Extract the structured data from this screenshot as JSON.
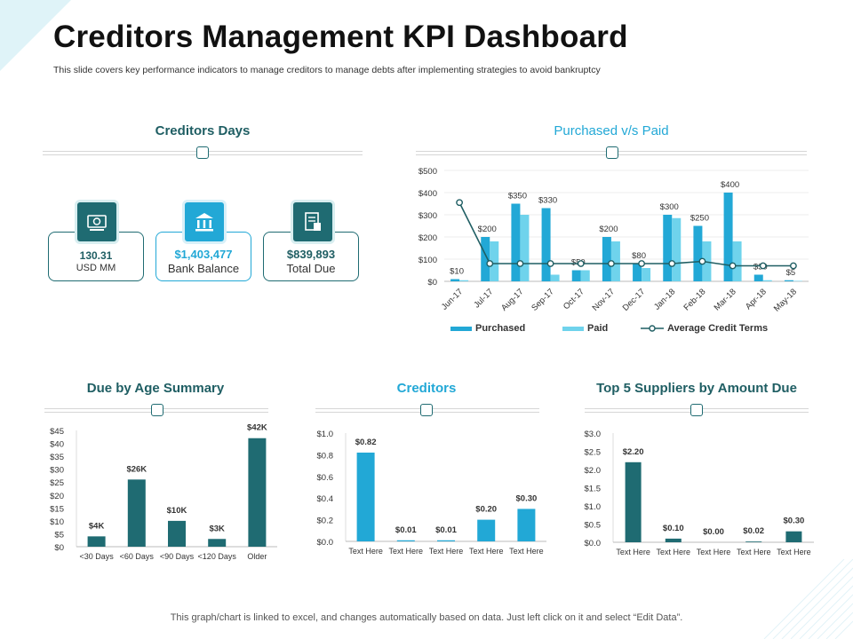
{
  "header": {
    "title": "Creditors Management KPI Dashboard",
    "subtitle": "This slide covers key performance indicators to manage creditors to manage debts after implementing strategies to avoid bankruptcy"
  },
  "footer": "This graph/chart is linked to excel, and changes automatically based on data. Just left click on it and select “Edit Data”.",
  "sections": {
    "creditors_days": "Creditors Days",
    "purchased_vs_paid": "Purchased v/s Paid",
    "due_by_age": "Due by Age Summary",
    "creditors": "Creditors",
    "top_suppliers": "Top 5 Suppliers by Amount Due"
  },
  "kpis": [
    {
      "value": "130.31",
      "label": "USD MM",
      "icon": "money-icon"
    },
    {
      "value": "$1,403,477",
      "label": "Bank Balance",
      "icon": "bank-icon"
    },
    {
      "value": "$839,893",
      "label": "Total Due",
      "icon": "invoice-icon"
    }
  ],
  "colors": {
    "dark": "#1f6b72",
    "blue": "#22a8d6",
    "light_blue": "#6fd3ec",
    "line": "#1f5e63"
  },
  "chart_data": [
    {
      "id": "purchased-vs-paid",
      "type": "bar",
      "title": "Purchased v/s Paid",
      "categories": [
        "Jun-17",
        "Jul-17",
        "Aug-17",
        "Sep-17",
        "Oct-17",
        "Nov-17",
        "Dec-17",
        "Jan-18",
        "Feb-18",
        "Mar-18",
        "Apr-18",
        "May-18"
      ],
      "yticks": [
        "$0",
        "$100",
        "$200",
        "$300",
        "$400",
        "$500"
      ],
      "ylim": [
        0,
        500
      ],
      "series": [
        {
          "name": "Purchased",
          "type": "bar",
          "values": [
            10,
            200,
            350,
            330,
            50,
            200,
            80,
            300,
            250,
            400,
            30,
            5
          ]
        },
        {
          "name": "Paid",
          "type": "bar",
          "values": [
            5,
            180,
            300,
            30,
            50,
            180,
            60,
            285,
            180,
            180,
            5,
            2
          ]
        },
        {
          "name": "Average Credit Terms",
          "type": "line",
          "values": [
            355,
            80,
            80,
            80,
            80,
            80,
            80,
            80,
            90,
            70,
            70,
            70
          ]
        }
      ],
      "data_labels": [
        "$10",
        "$200",
        "$350",
        "$330",
        "$50",
        "$200",
        "$80",
        "$300",
        "$250",
        "$400",
        "$30",
        "$5"
      ],
      "legend": "bottom"
    },
    {
      "id": "due-by-age",
      "type": "bar",
      "title": "Due by Age Summary",
      "categories": [
        "<30 Days",
        "<60 Days",
        "<90 Days",
        "<120 Days",
        "Older"
      ],
      "values": [
        4,
        26,
        10,
        3,
        42
      ],
      "data_labels": [
        "$4K",
        "$26K",
        "$10K",
        "$3K",
        "$42K"
      ],
      "yticks": [
        "$0",
        "$5",
        "$10",
        "$15",
        "$20",
        "$25",
        "$30",
        "$35",
        "$40",
        "$45"
      ],
      "ylim": [
        0,
        45
      ]
    },
    {
      "id": "creditors",
      "type": "bar",
      "title": "Creditors",
      "categories": [
        "Text Here",
        "Text Here",
        "Text Here",
        "Text Here",
        "Text Here"
      ],
      "values": [
        0.82,
        0.01,
        0.01,
        0.2,
        0.3
      ],
      "data_labels": [
        "$0.82",
        "$0.01",
        "$0.01",
        "$0.20",
        "$0.30"
      ],
      "yticks": [
        "$0.0",
        "$0.2",
        "$0.4",
        "$0.6",
        "$0.8",
        "$1.0"
      ],
      "ylim": [
        0,
        1.0
      ]
    },
    {
      "id": "top-suppliers",
      "type": "bar",
      "title": "Top 5 Suppliers by Amount Due",
      "categories": [
        "Text Here",
        "Text Here",
        "Text Here",
        "Text Here",
        "Text Here"
      ],
      "values": [
        2.2,
        0.1,
        0.0,
        0.02,
        0.3
      ],
      "data_labels": [
        "$2.20",
        "$0.10",
        "$0.00",
        "$0.02",
        "$0.30"
      ],
      "yticks": [
        "$0.0",
        "$0.5",
        "$1.0",
        "$1.5",
        "$2.0",
        "$2.5",
        "$3.0"
      ],
      "ylim": [
        0,
        3.0
      ]
    }
  ]
}
